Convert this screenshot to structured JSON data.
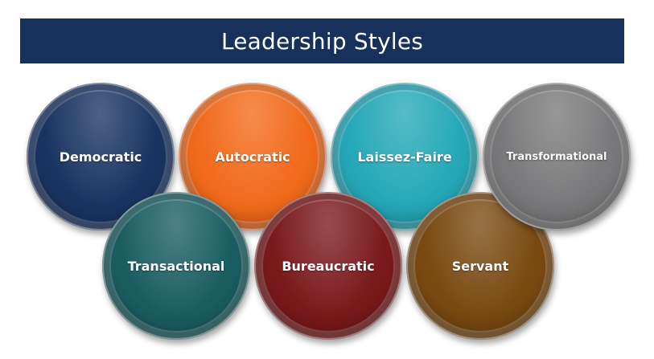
{
  "title": "Leadership Styles",
  "styles": [
    {
      "label": "Democratic",
      "color": "#1a3563"
    },
    {
      "label": "Autocratic",
      "color": "#f26a1b"
    },
    {
      "label": "Laissez-Faire",
      "color": "#26a8b8"
    },
    {
      "label": "Transformational",
      "color": "#7a7a7c"
    },
    {
      "label": "Transactional",
      "color": "#1b5e62"
    },
    {
      "label": "Bureaucratic",
      "color": "#7a1a1c"
    },
    {
      "label": "Servant",
      "color": "#7a4a12"
    }
  ]
}
